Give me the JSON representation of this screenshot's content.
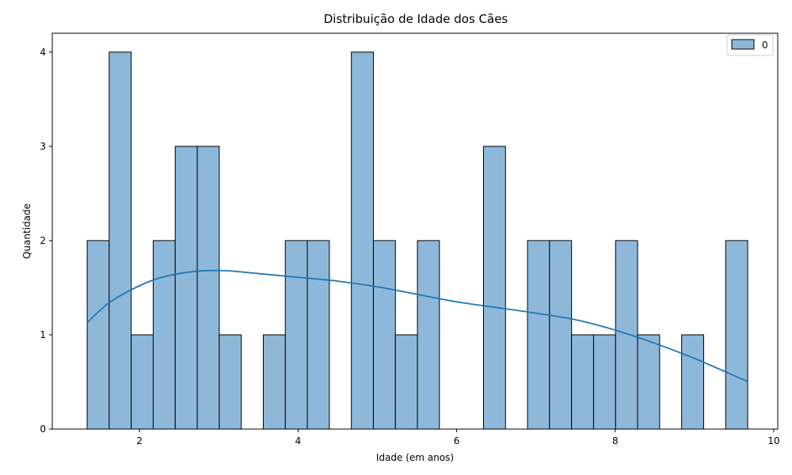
{
  "chart_data": {
    "type": "bar",
    "title": "Distribuição de Idade dos Cães",
    "xlabel": "Idade (em anos)",
    "ylabel": "Quantidade",
    "xlim": [
      0.9,
      10.05
    ],
    "ylim": [
      0,
      4.2
    ],
    "xticks": [
      2,
      4,
      6,
      8,
      10
    ],
    "yticks": [
      0,
      1,
      2,
      3,
      4
    ],
    "grid": false,
    "legend_position": "top-right",
    "bin_start": 1.34,
    "bin_width": 0.2777,
    "counts": [
      2,
      4,
      1,
      2,
      3,
      3,
      1,
      0,
      1,
      2,
      2,
      0,
      4,
      2,
      1,
      2,
      0,
      0,
      3,
      0,
      2,
      2,
      1,
      1,
      2,
      1,
      0,
      1,
      0,
      2
    ],
    "series": [
      {
        "name": "0",
        "color": "#1f77b4",
        "fill": "#8eb8da"
      }
    ],
    "kde": {
      "x": [
        1.34,
        1.6,
        1.9,
        2.2,
        2.5,
        2.8,
        3.1,
        3.5,
        4.0,
        4.5,
        5.0,
        5.5,
        6.0,
        6.5,
        7.0,
        7.5,
        8.0,
        8.5,
        9.0,
        9.68
      ],
      "y": [
        1.13,
        1.33,
        1.48,
        1.59,
        1.65,
        1.68,
        1.68,
        1.65,
        1.61,
        1.57,
        1.51,
        1.43,
        1.35,
        1.29,
        1.23,
        1.16,
        1.05,
        0.91,
        0.75,
        0.5
      ]
    }
  }
}
